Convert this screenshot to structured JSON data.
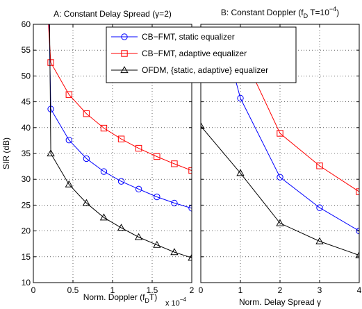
{
  "chart_data": [
    {
      "type": "line",
      "title": "A: Constant Delay Spread (γ=2)",
      "xlabel": "Norm. Doppler (f",
      "xlabel_sub": "D",
      "xlabel_end": "T)",
      "x_multiplier": "x 10",
      "x_multiplier_exp": "−4",
      "ylabel": "SIR (dB)",
      "xlim": [
        0,
        2
      ],
      "ylim": [
        10,
        60
      ],
      "xticks": [
        0,
        0.5,
        1,
        1.5,
        2
      ],
      "xtick_labels": [
        "0",
        "0.5",
        "1",
        "1.5",
        "2"
      ],
      "yticks": [
        10,
        15,
        20,
        25,
        30,
        35,
        40,
        45,
        50,
        55,
        60
      ],
      "grid": true,
      "legend_position": "top-right",
      "series": [
        {
          "name": "CB−FMT, static equalizer",
          "color": "#0000ff",
          "marker": "circle",
          "x": [
            0.2,
            0.22,
            0.45,
            0.67,
            0.89,
            1.11,
            1.33,
            1.56,
            1.78,
            2.0
          ],
          "y": [
            60,
            43.6,
            37.6,
            34.0,
            31.5,
            29.6,
            28.1,
            26.6,
            25.4,
            24.4
          ],
          "markers": [
            false,
            true,
            true,
            true,
            true,
            true,
            true,
            true,
            true,
            true
          ]
        },
        {
          "name": "CB−FMT, adaptive equalizer",
          "color": "#ff0000",
          "marker": "square",
          "x": [
            0.19,
            0.22,
            0.45,
            0.67,
            0.89,
            1.11,
            1.33,
            1.56,
            1.78,
            2.0
          ],
          "y": [
            60,
            52.6,
            46.4,
            42.7,
            39.9,
            37.8,
            36.0,
            34.4,
            33.0,
            31.7
          ],
          "markers": [
            false,
            true,
            true,
            true,
            true,
            true,
            true,
            true,
            true,
            true
          ]
        },
        {
          "name": "OFDM, {static, adaptive} equalizer",
          "color": "#000000",
          "marker": "triangle",
          "x": [
            0.205,
            0.22,
            0.45,
            0.67,
            0.89,
            1.11,
            1.33,
            1.56,
            1.78,
            2.0
          ],
          "y": [
            60,
            35.0,
            29.0,
            25.4,
            22.6,
            20.6,
            18.8,
            17.3,
            15.9,
            14.8
          ],
          "markers": [
            false,
            true,
            true,
            true,
            true,
            true,
            true,
            true,
            true,
            true
          ]
        }
      ]
    },
    {
      "type": "line",
      "title": "B: Constant Doppler (f",
      "title_sub": "D",
      "title_mid": " T=10",
      "title_sup": "−4",
      "title_end": ")",
      "xlabel": "Norm. Delay Spread γ",
      "xlim": [
        0,
        4
      ],
      "ylim": [
        10,
        60
      ],
      "xticks": [
        0,
        1,
        2,
        3,
        4
      ],
      "xtick_labels": [
        "0",
        "1",
        "2",
        "3",
        "4"
      ],
      "grid": true,
      "series": [
        {
          "name": "CB−FMT, static equalizer",
          "color": "#0000ff",
          "marker": "circle",
          "x": [
            0.55,
            1,
            2,
            3,
            4
          ],
          "y": [
            58.5,
            45.7,
            30.4,
            24.5,
            20.0
          ],
          "markers": [
            false,
            true,
            true,
            true,
            true
          ]
        },
        {
          "name": "CB−FMT, adaptive equalizer",
          "color": "#ff0000",
          "marker": "square",
          "x": [
            0.8,
            2,
            3,
            4
          ],
          "y": [
            58.5,
            38.9,
            32.6,
            27.6
          ],
          "markers": [
            false,
            true,
            true,
            true
          ]
        },
        {
          "name": "OFDM, {static, adaptive} equalizer",
          "color": "#000000",
          "marker": "triangle",
          "x": [
            0,
            1,
            2,
            3,
            4
          ],
          "y": [
            40.3,
            31.2,
            21.5,
            18.0,
            15.3
          ],
          "markers": [
            true,
            true,
            true,
            true,
            true
          ]
        }
      ]
    }
  ]
}
